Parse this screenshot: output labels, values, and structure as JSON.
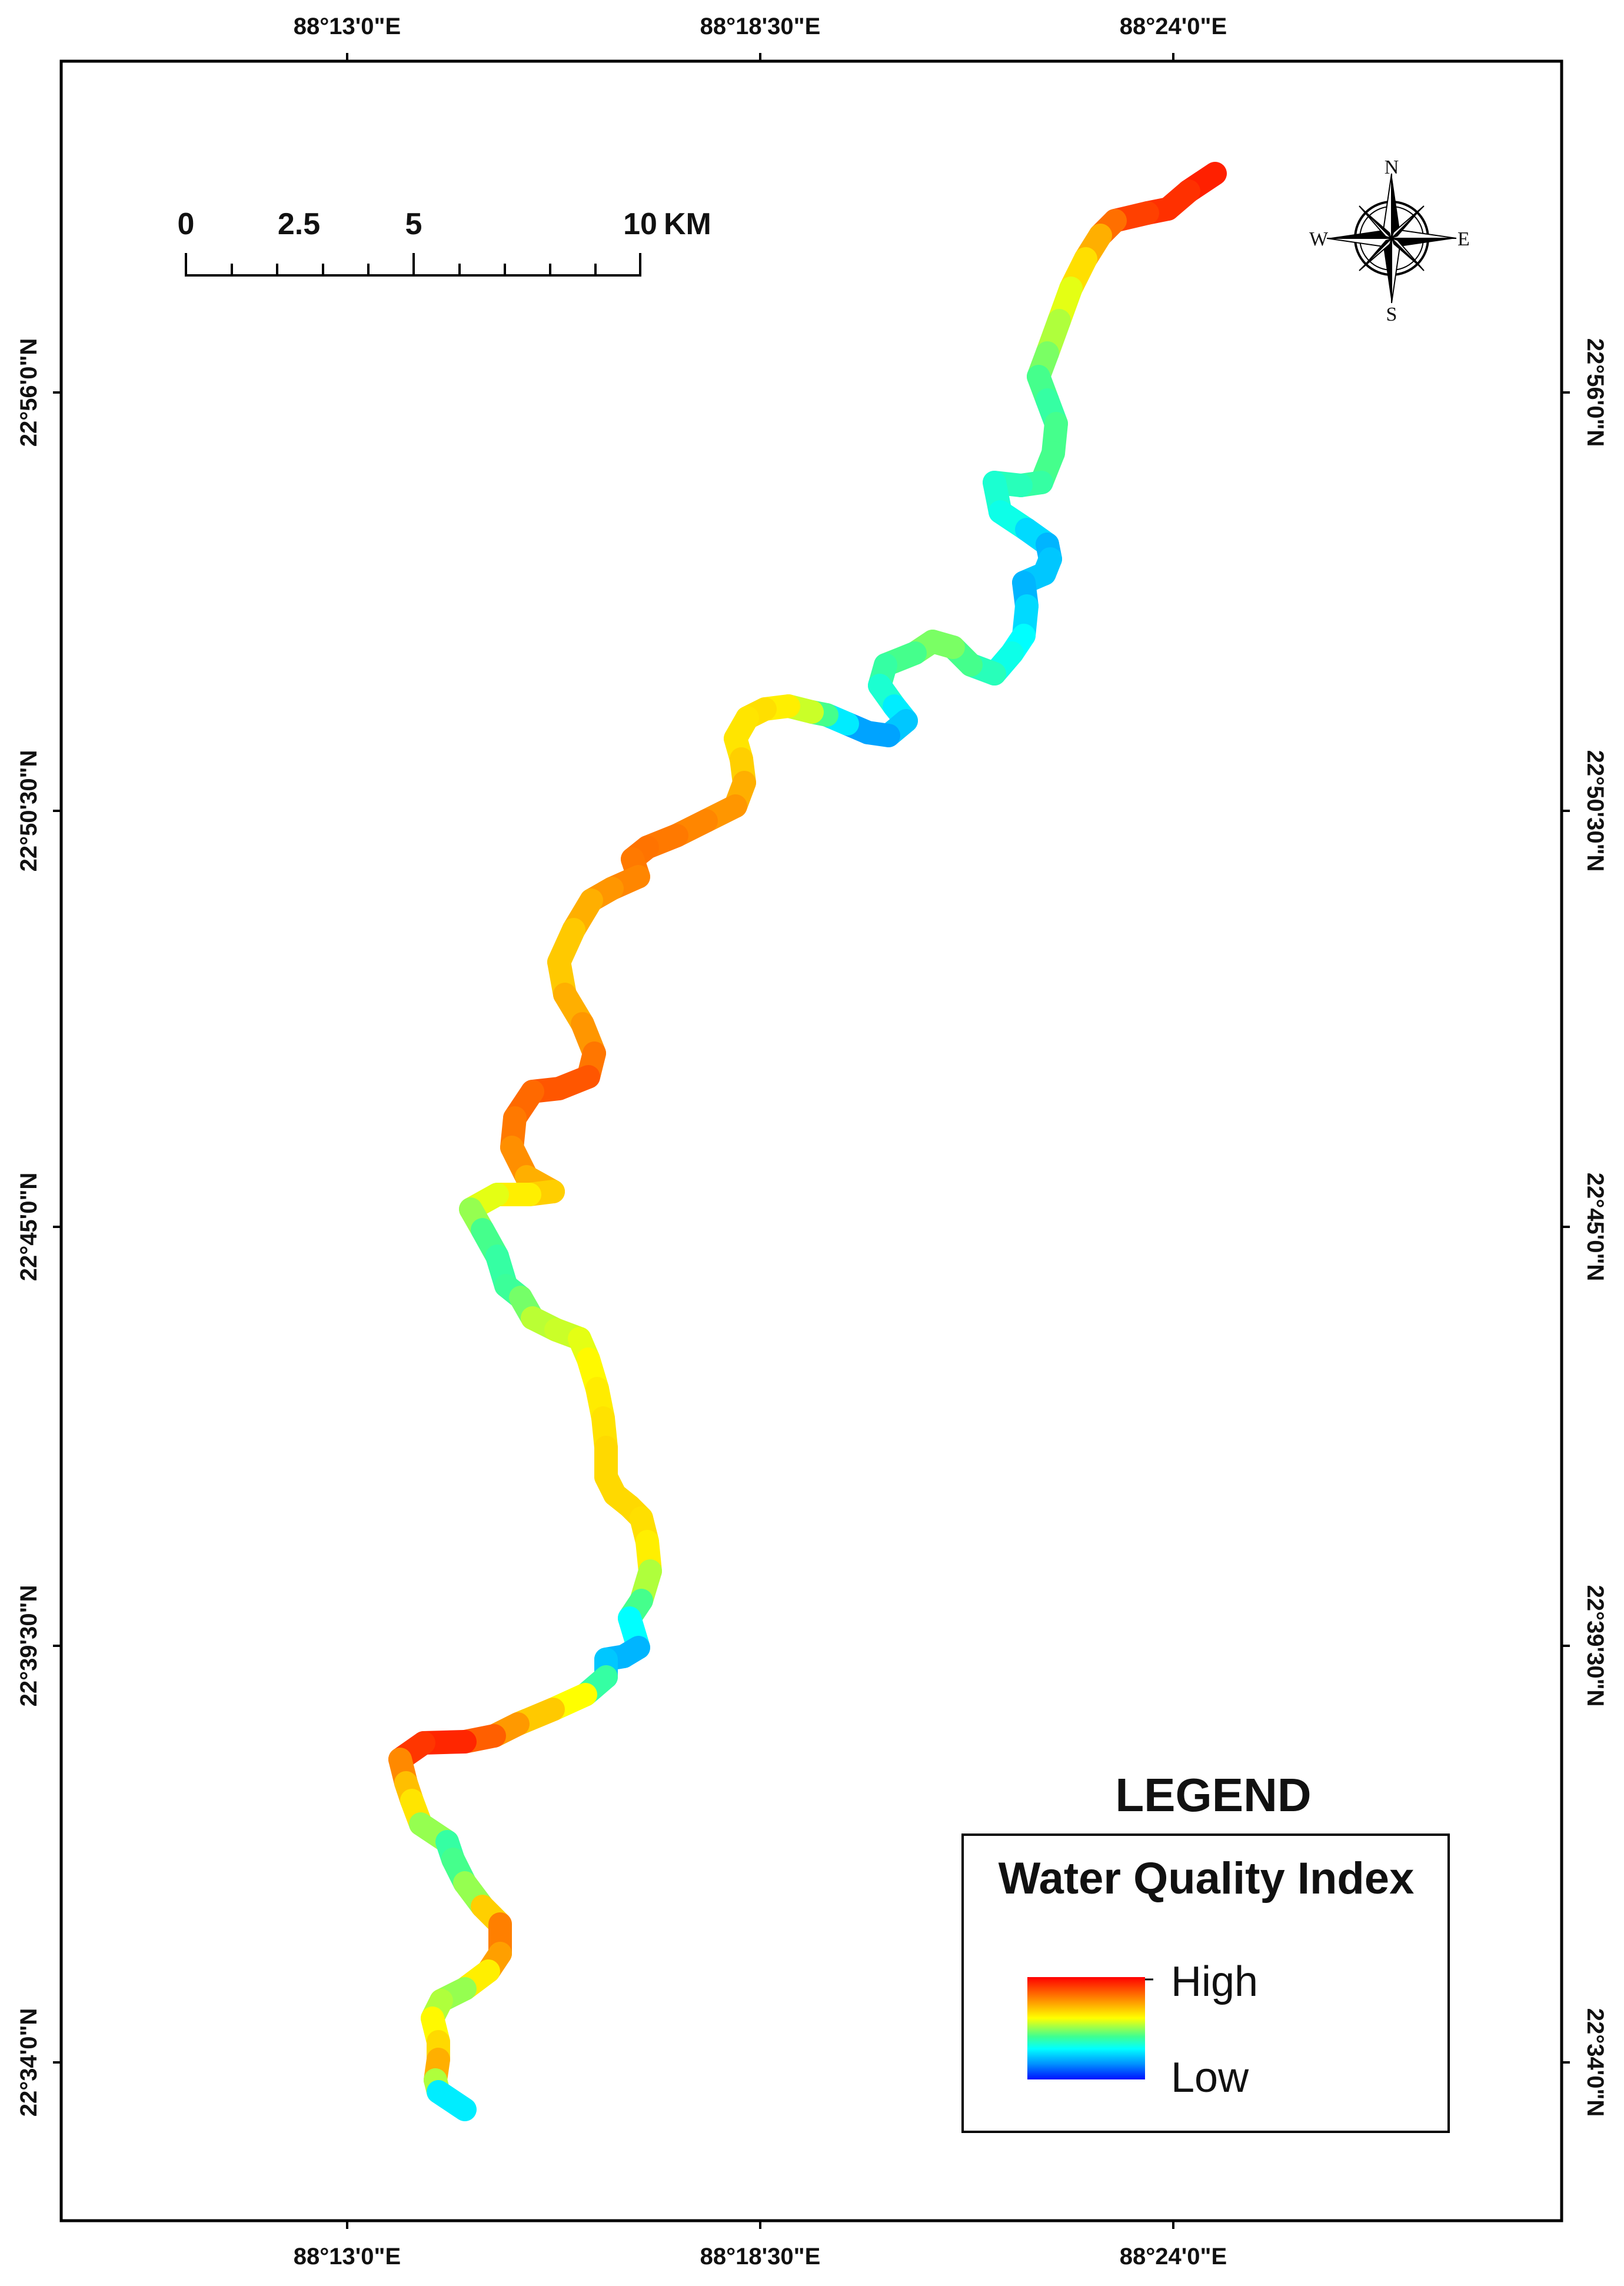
{
  "axes": {
    "top_labels": [
      "88°13'0\"E",
      "88°18'30\"E",
      "88°24'0\"E"
    ],
    "bottom_labels": [
      "88°13'0\"E",
      "88°18'30\"E",
      "88°24'0\"E"
    ],
    "left_labels": [
      "22°56'0\"N",
      "22°50'30\"N",
      "22°45'0\"N",
      "22°39'30\"N",
      "22°34'0\"N"
    ],
    "right_labels": [
      "22°56'0\"N",
      "22°50'30\"N",
      "22°45'0\"N",
      "22°39'30\"N",
      "22°34'0\"N"
    ]
  },
  "scale_bar": {
    "labels": [
      "0",
      "2.5",
      "5",
      "10"
    ],
    "unit": "KM"
  },
  "north_arrow": {
    "n": "N",
    "e": "E",
    "s": "S",
    "w": "W"
  },
  "legend": {
    "title": "LEGEND",
    "heading": "Water Quality Index",
    "high_label": "High",
    "low_label": "Low",
    "gradient_colors": [
      "#ff0000",
      "#ff7f00",
      "#ffff00",
      "#00ff80",
      "#00ffff",
      "#0080ff",
      "#0000ff"
    ]
  },
  "colors": {
    "frame": "#000000",
    "river_high": "#ff2000",
    "river_low": "#0018ff"
  }
}
